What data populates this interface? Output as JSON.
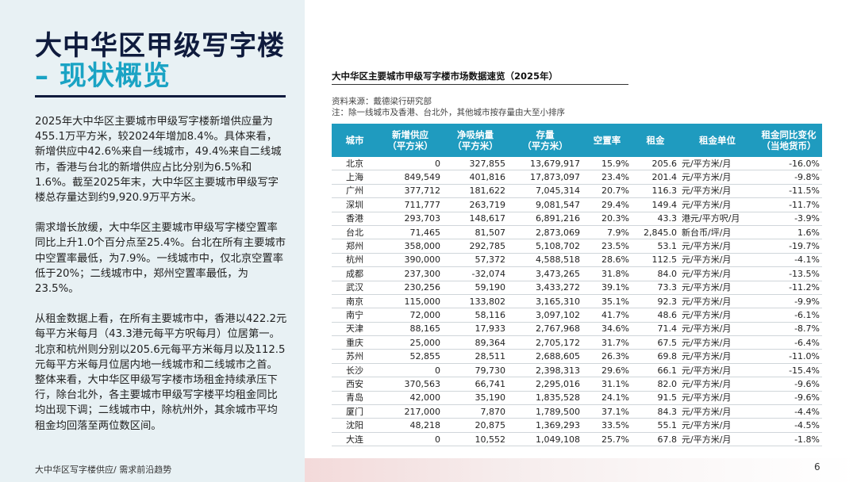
{
  "title": {
    "line1": "大中华区甲级写字楼",
    "line2": "– 现状概览"
  },
  "paragraphs": [
    "2025年大中华区主要城市甲级写字楼新增供应量为455.1万平方米，较2024年增加8.4%。具体来看，新增供应中42.6%来自一线城市，49.4%来自二线城市，香港与台北的新增供应占比分别为6.5%和1.6%。截至2025年末，大中华区主要城市甲级写字楼总存量达到约9,920.9万平方米。",
    "需求增长放缓，大中华区主要城市甲级写字楼空置率同比上升1.0个百分点至25.4%。台北在所有主要城市中空置率最低，为7.9%。一线城市中，仅北京空置率低于20%；二线城市中，郑州空置率最低，为23.5%。",
    "从租金数据上看，在所有主要城市中，香港以422.2元每平方米每月（43.3港元每平方呎每月）位居第一。北京和杭州则分别以205.6元每平方米每月以及112.5元每平方米每月位居内地一线城市和二线城市之首。整体来看，大中华区甲级写字楼市场租金持续承压下行，除台北外，各主要城市甲级写字楼平均租金同比均出现下调；二线城市中，除杭州外，其余城市平均租金均回落至两位数区间。"
  ],
  "footer": {
    "left": "大中华区写字楼供应/ 需求前沿趋势",
    "page": "6"
  },
  "table": {
    "title": "大中华区主要城市甲级写字楼市场数据速览（2025年）",
    "source": "资料来源：戴德梁行研究部",
    "note": "注：除一线城市及香港、台北外，其他城市按存量由大至小排序",
    "headers": [
      "城市",
      "新增供应\n（平方米）",
      "净吸纳量\n（平方米）",
      "存量\n（平方米）",
      "空置率",
      "租金",
      "租金单位",
      "租金同比变化\n（当地货币）"
    ],
    "rows": [
      [
        "北京",
        "0",
        "327,855",
        "13,679,917",
        "15.9%",
        "205.6",
        "元/平方米/月",
        "-16.0%"
      ],
      [
        "上海",
        "849,549",
        "401,816",
        "17,873,097",
        "23.4%",
        "201.4",
        "元/平方米/月",
        "-9.8%"
      ],
      [
        "广州",
        "377,712",
        "181,622",
        "7,045,314",
        "20.7%",
        "116.3",
        "元/平方米/月",
        "-11.5%"
      ],
      [
        "深圳",
        "711,777",
        "263,719",
        "9,081,547",
        "29.4%",
        "149.4",
        "元/平方米/月",
        "-11.7%"
      ],
      [
        "香港",
        "293,703",
        "148,617",
        "6,891,216",
        "20.3%",
        "43.3",
        "港元/平方呎/月",
        "-3.9%"
      ],
      [
        "台北",
        "71,465",
        "81,507",
        "2,873,069",
        "7.9%",
        "2,845.0",
        "新台币/坪/月",
        "1.6%"
      ],
      [
        "郑州",
        "358,000",
        "292,785",
        "5,108,702",
        "23.5%",
        "53.1",
        "元/平方米/月",
        "-19.7%"
      ],
      [
        "杭州",
        "390,000",
        "57,372",
        "4,588,518",
        "28.6%",
        "112.5",
        "元/平方米/月",
        "-4.1%"
      ],
      [
        "成都",
        "237,300",
        "-32,074",
        "3,473,265",
        "31.8%",
        "84.0",
        "元/平方米/月",
        "-13.5%"
      ],
      [
        "武汉",
        "230,256",
        "59,190",
        "3,433,272",
        "39.1%",
        "73.3",
        "元/平方米/月",
        "-11.2%"
      ],
      [
        "南京",
        "115,000",
        "133,802",
        "3,165,310",
        "35.1%",
        "92.3",
        "元/平方米/月",
        "-9.9%"
      ],
      [
        "南宁",
        "72,000",
        "58,116",
        "3,097,102",
        "41.7%",
        "48.6",
        "元/平方米/月",
        "-6.1%"
      ],
      [
        "天津",
        "88,165",
        "17,933",
        "2,767,968",
        "34.6%",
        "71.4",
        "元/平方米/月",
        "-8.7%"
      ],
      [
        "重庆",
        "25,000",
        "89,364",
        "2,705,172",
        "31.7%",
        "67.5",
        "元/平方米/月",
        "-6.4%"
      ],
      [
        "苏州",
        "52,855",
        "28,511",
        "2,688,605",
        "26.3%",
        "69.8",
        "元/平方米/月",
        "-11.0%"
      ],
      [
        "长沙",
        "0",
        "79,730",
        "2,398,313",
        "29.6%",
        "66.1",
        "元/平方米/月",
        "-15.4%"
      ],
      [
        "西安",
        "370,563",
        "66,741",
        "2,295,016",
        "31.1%",
        "82.0",
        "元/平方米/月",
        "-9.6%"
      ],
      [
        "青岛",
        "42,000",
        "35,190",
        "1,835,528",
        "24.1%",
        "91.5",
        "元/平方米/月",
        "-9.6%"
      ],
      [
        "厦门",
        "217,000",
        "7,870",
        "1,789,500",
        "37.1%",
        "84.3",
        "元/平方米/月",
        "-4.4%"
      ],
      [
        "沈阳",
        "48,218",
        "20,875",
        "1,369,293",
        "33.5%",
        "55.1",
        "元/平方米/月",
        "-4.5%"
      ],
      [
        "大连",
        "0",
        "10,552",
        "1,049,108",
        "25.7%",
        "67.8",
        "元/平方米/月",
        "-1.8%"
      ]
    ]
  }
}
